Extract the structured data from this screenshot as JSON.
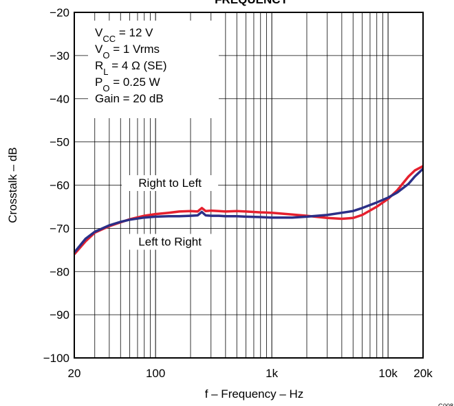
{
  "chart_data": {
    "type": "line",
    "title": "FREQUENCY",
    "xlabel": "f – Frequency – Hz",
    "ylabel": "Crosstalk – dB",
    "xscale": "log",
    "xlim": [
      20,
      20000
    ],
    "ylim": [
      -100,
      -20
    ],
    "grid": true,
    "x_ticks": [
      {
        "value": 20,
        "label": "20"
      },
      {
        "value": 100,
        "label": "100"
      },
      {
        "value": 1000,
        "label": "1k"
      },
      {
        "value": 10000,
        "label": "10k"
      },
      {
        "value": 20000,
        "label": "20k"
      }
    ],
    "y_ticks": [
      {
        "value": -20,
        "label": "−20"
      },
      {
        "value": -30,
        "label": "−30"
      },
      {
        "value": -40,
        "label": "−40"
      },
      {
        "value": -50,
        "label": "−50"
      },
      {
        "value": -60,
        "label": "−60"
      },
      {
        "value": -70,
        "label": "−70"
      },
      {
        "value": -80,
        "label": "−80"
      },
      {
        "value": -90,
        "label": "−90"
      },
      {
        "value": -100,
        "label": "−100"
      }
    ],
    "conditions": [
      {
        "base": "V",
        "sub": "CC",
        "rest": " = 12 V"
      },
      {
        "base": "V",
        "sub": "O",
        "rest": " = 1 Vrms"
      },
      {
        "base": "R",
        "sub": "L",
        "rest": " = 4 Ω (SE)"
      },
      {
        "base": "P",
        "sub": "O",
        "rest": " = 0.25 W"
      },
      {
        "base": "Gain = 20 dB",
        "sub": "",
        "rest": ""
      }
    ],
    "annotations": [
      {
        "text": "Right to Left",
        "x": 520,
        "y": -60.4
      },
      {
        "text": "Left to Right",
        "x": 520,
        "y": -74
      }
    ],
    "figure_id": "G008",
    "series": [
      {
        "color": "#e5202e",
        "points": [
          [
            20,
            -76
          ],
          [
            25,
            -73
          ],
          [
            30,
            -71
          ],
          [
            40,
            -69.5
          ],
          [
            50,
            -68.6
          ],
          [
            60,
            -67.9
          ],
          [
            80,
            -67.1
          ],
          [
            100,
            -66.7
          ],
          [
            130,
            -66.4
          ],
          [
            160,
            -66.1
          ],
          [
            200,
            -66
          ],
          [
            230,
            -66.1
          ],
          [
            250,
            -65.3
          ],
          [
            270,
            -66
          ],
          [
            300,
            -65.9
          ],
          [
            350,
            -66
          ],
          [
            400,
            -66.1
          ],
          [
            500,
            -66
          ],
          [
            600,
            -66.1
          ],
          [
            800,
            -66.3
          ],
          [
            1000,
            -66.4
          ],
          [
            1500,
            -66.8
          ],
          [
            2000,
            -67.1
          ],
          [
            3000,
            -67.6
          ],
          [
            4000,
            -67.8
          ],
          [
            5000,
            -67.6
          ],
          [
            6000,
            -66.9
          ],
          [
            8000,
            -65
          ],
          [
            10000,
            -63.2
          ],
          [
            12000,
            -61.2
          ],
          [
            15000,
            -58
          ],
          [
            17000,
            -56.6
          ],
          [
            20000,
            -55.6
          ]
        ]
      },
      {
        "color": "#2b2f87",
        "points": [
          [
            20,
            -75.6
          ],
          [
            25,
            -72.4
          ],
          [
            30,
            -70.8
          ],
          [
            40,
            -69.3
          ],
          [
            50,
            -68.5
          ],
          [
            60,
            -68
          ],
          [
            80,
            -67.5
          ],
          [
            100,
            -67.3
          ],
          [
            130,
            -67.2
          ],
          [
            160,
            -67.2
          ],
          [
            200,
            -67.1
          ],
          [
            230,
            -67
          ],
          [
            250,
            -66.2
          ],
          [
            270,
            -67
          ],
          [
            300,
            -67.1
          ],
          [
            350,
            -67.1
          ],
          [
            400,
            -67.2
          ],
          [
            500,
            -67.2
          ],
          [
            600,
            -67.3
          ],
          [
            800,
            -67.4
          ],
          [
            1000,
            -67.5
          ],
          [
            1500,
            -67.5
          ],
          [
            2000,
            -67.3
          ],
          [
            3000,
            -66.9
          ],
          [
            4000,
            -66.4
          ],
          [
            5000,
            -66
          ],
          [
            6000,
            -65.3
          ],
          [
            8000,
            -64
          ],
          [
            10000,
            -62.9
          ],
          [
            12000,
            -61.7
          ],
          [
            15000,
            -59.7
          ],
          [
            17000,
            -58
          ],
          [
            20000,
            -56.2
          ]
        ]
      }
    ]
  }
}
